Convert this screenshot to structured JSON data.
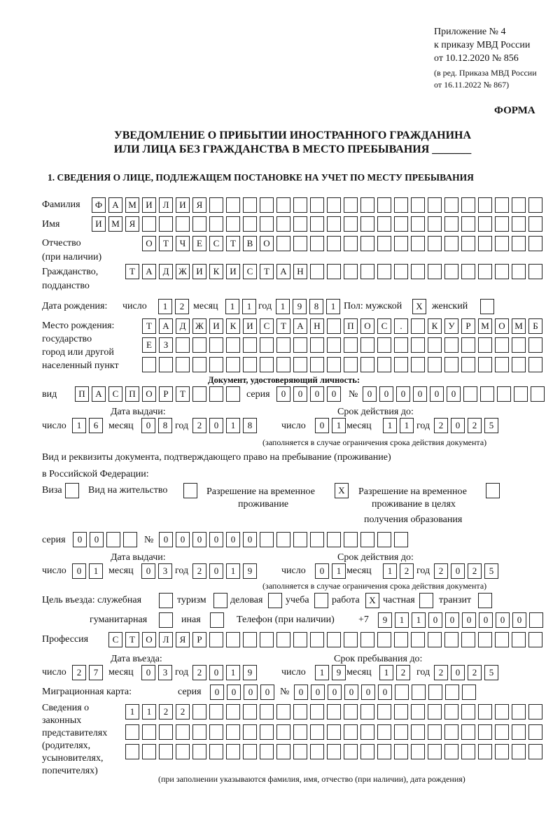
{
  "header": {
    "line1": "Приложение № 4",
    "line2": "к приказу МВД России",
    "line3": "от 10.12.2020 № 856",
    "line4": "(в ред. Приказа МВД России",
    "line5": "от 16.11.2022 № 867)",
    "form_label": "ФОРМА",
    "title1": "УВЕДОМЛЕНИЕ О ПРИБЫТИИ ИНОСТРАННОГО ГРАЖДАНИНА",
    "title2": "ИЛИ ЛИЦА БЕЗ ГРАЖДАНСТВА В МЕСТО ПРЕБЫВАНИЯ _______",
    "section1": "1. СВЕДЕНИЯ О ЛИЦЕ, ПОДЛЕЖАЩЕМ ПОСТАНОВКЕ НА УЧЕТ ПО МЕСТУ ПРЕБЫВАНИЯ"
  },
  "labels": {
    "surname": "Фамилия",
    "name": "Имя",
    "patronymic": "Отчество",
    "patronymic2": "(при наличии)",
    "citizenship": "Гражданство,",
    "citizenship2": "подданство",
    "dob": "Дата рождения:",
    "day": "число",
    "month": "месяц",
    "year": "год",
    "sex": "Пол: мужской",
    "female": "женский",
    "birthplace1": "Место рождения:",
    "birthplace2": "государство",
    "birthplace3": "город или другой",
    "birthplace4": "населенный пункт",
    "id_doc": "Документ, удостоверяющий личность:",
    "kind": "вид",
    "series": "серия",
    "number": "№",
    "issue_date": "Дата выдачи:",
    "valid_until": "Срок действия до:",
    "valid_note": "(заполняется в случае ограничения срока действия документа)",
    "right_doc1": "Вид и реквизиты документа, подтверждающего право на пребывание (проживание)",
    "right_doc2": "в Российской Федерации:",
    "visa": "Виза",
    "residence": "Вид на жительство",
    "trp1": "Разрешение на временное",
    "trp2": "проживание",
    "trpe1": "Разрешение на временное",
    "trpe2": "проживание в целях",
    "trpe3": "получения образования",
    "purpose": "Цель въезда: служебная",
    "tourism": "туризм",
    "business": "деловая",
    "study": "учеба",
    "work": "работа",
    "private": "частная",
    "transit": "транзит",
    "humanitarian": "гуманитарная",
    "other": "иная",
    "phone": "Телефон (при наличии)",
    "phone_prefix": "+7",
    "profession": "Профессия",
    "entry_date": "Дата въезда:",
    "stay_until": "Срок пребывания до:",
    "migration_card": "Миграционная карта:",
    "reps1": "Сведения о",
    "reps2": "законных",
    "reps3": "представителях",
    "reps4": "(родителях,",
    "reps5": "усыновителях,",
    "reps6": "попечителях)",
    "reps_note": "(при заполнении указываются фамилия, имя, отчество (при наличии), дата рождения)"
  },
  "fields": {
    "surname": "ФАМИЛИЯ",
    "name": "ИМЯ",
    "patronymic": "ОТЧЕСТВО",
    "citizenship": "ТАДЖИКИСТАН",
    "dob_day": "12",
    "dob_month": "11",
    "dob_year": "1981",
    "sex_male": "X",
    "sex_female": "",
    "birthplace_row1": "ТАДЖИКИСТАН ПОС. КУРМОМБ",
    "birthplace_row2": "ЕЗ",
    "birthplace_row3": "",
    "doc_kind": "ПАСПОРТ",
    "doc_series": "0000",
    "doc_number": "000000",
    "doc_issue_day": "16",
    "doc_issue_month": "08",
    "doc_issue_year": "2018",
    "doc_valid_day": "01",
    "doc_valid_month": "11",
    "doc_valid_year": "2025",
    "visa": "",
    "residence": "",
    "trp": "X",
    "trp_education": "",
    "right_series": "00",
    "right_number": "000000",
    "right_issue_day": "01",
    "right_issue_month": "03",
    "right_issue_year": "2019",
    "right_valid_day": "01",
    "right_valid_month": "12",
    "right_valid_year": "2025",
    "purpose_official": "",
    "purpose_tourism": "",
    "purpose_business": "",
    "purpose_study": "",
    "purpose_work": "X",
    "purpose_private": "",
    "purpose_transit": "",
    "purpose_humanitarian": "",
    "purpose_other": "",
    "phone": "911000000",
    "profession": "СТОЛЯР",
    "entry_day": "27",
    "entry_month": "03",
    "entry_year": "2019",
    "stay_day": "19",
    "stay_month": "12",
    "stay_year": "2025",
    "mc_series": "0000",
    "mc_number": "000000",
    "reps_row1": "1122",
    "reps_row2": "",
    "reps_row3": ""
  }
}
